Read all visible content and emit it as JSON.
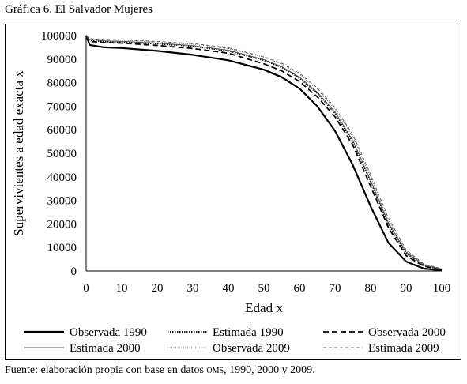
{
  "title": "Gráfica 6. El Salvador Mujeres",
  "source": {
    "prefix": "Fuente: elaboración propia con base en datos ",
    "abbr": "OMS",
    "suffix": ", 1990, 2000 y 2009."
  },
  "chart_data": {
    "type": "line",
    "xlabel": "Edad x",
    "ylabel": "Supervivientes a edad exacta x",
    "xlim": [
      0,
      100
    ],
    "ylim": [
      0,
      100000
    ],
    "x_ticks": [
      "0",
      "10",
      "20",
      "30",
      "40",
      "50",
      "60",
      "70",
      "80",
      "90",
      "100"
    ],
    "y_ticks": [
      "0",
      "10000",
      "20000",
      "30000",
      "40000",
      "50000",
      "60000",
      "70000",
      "80000",
      "90000",
      "100000"
    ],
    "grid": false,
    "legend_position": "bottom",
    "x": [
      0,
      1,
      5,
      10,
      20,
      30,
      40,
      50,
      55,
      60,
      65,
      70,
      75,
      80,
      85,
      90,
      95,
      100
    ],
    "series": [
      {
        "name": "Observada 1990",
        "style": "solid-thick",
        "color": "#000000",
        "values": [
          100000,
          96000,
          95000,
          94700,
          93500,
          91800,
          89500,
          85500,
          82300,
          77500,
          70000,
          59500,
          45000,
          27500,
          12000,
          4000,
          1000,
          300
        ]
      },
      {
        "name": "Estimada 1990",
        "style": "dotted",
        "color": "#000000",
        "values": [
          100000,
          98000,
          97500,
          97200,
          96500,
          95500,
          93500,
          89500,
          86500,
          82000,
          75500,
          67000,
          55000,
          38000,
          20000,
          7500,
          2200,
          700
        ]
      },
      {
        "name": "Observada 2000",
        "style": "dashed",
        "color": "#000000",
        "values": [
          100000,
          97500,
          97000,
          96800,
          95800,
          94500,
          92500,
          88000,
          85000,
          80500,
          74000,
          65500,
          53500,
          36000,
          18500,
          6500,
          2000,
          600
        ]
      },
      {
        "name": "Estimada 2000",
        "style": "solid-thin",
        "color": "#555555",
        "values": [
          100000,
          98200,
          97800,
          97500,
          96800,
          95700,
          93800,
          89800,
          86800,
          82300,
          76000,
          67500,
          55500,
          38500,
          20500,
          8000,
          2500,
          800
        ]
      },
      {
        "name": "Observada 2009",
        "style": "dotted-thin",
        "color": "#444444",
        "values": [
          100000,
          98500,
          98200,
          98000,
          97300,
          96300,
          94500,
          90800,
          88000,
          83500,
          77200,
          68800,
          57000,
          40000,
          21500,
          8500,
          2700,
          900
        ]
      },
      {
        "name": "Estimada 2009",
        "style": "dashed-thin",
        "color": "#444444",
        "values": [
          100000,
          98700,
          98400,
          98200,
          97500,
          96600,
          94800,
          91000,
          88300,
          84000,
          77800,
          69500,
          58000,
          41000,
          22500,
          9000,
          2900,
          1000
        ]
      }
    ]
  }
}
